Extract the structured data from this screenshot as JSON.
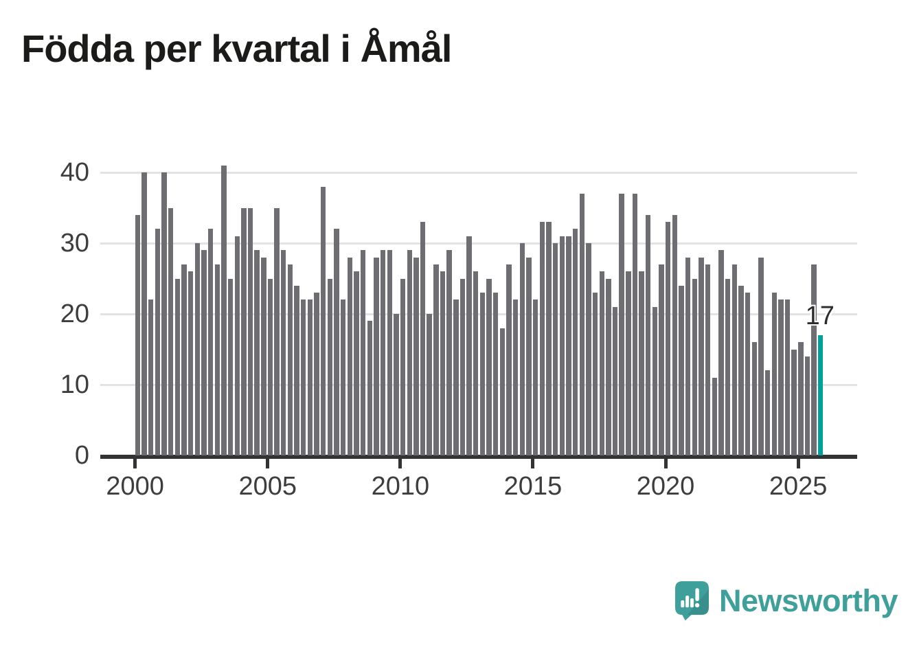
{
  "title": "Födda per kvartal i Åmål",
  "chart_data": {
    "type": "bar",
    "title": "Födda per kvartal i Åmål",
    "unit_period": "quarter",
    "start_year": 2000,
    "categories_note": "104 consecutive quarters from 2000-Q1 to 2025-Q4",
    "values": [
      34,
      40,
      22,
      32,
      40,
      35,
      25,
      27,
      26,
      30,
      29,
      32,
      27,
      41,
      25,
      31,
      35,
      35,
      29,
      28,
      25,
      35,
      29,
      27,
      24,
      22,
      22,
      23,
      38,
      25,
      32,
      22,
      28,
      26,
      29,
      19,
      28,
      29,
      29,
      20,
      25,
      29,
      28,
      33,
      20,
      27,
      26,
      29,
      22,
      25,
      31,
      26,
      23,
      25,
      23,
      18,
      27,
      22,
      30,
      28,
      22,
      33,
      33,
      30,
      31,
      31,
      32,
      37,
      30,
      23,
      26,
      25,
      21,
      37,
      26,
      37,
      26,
      34,
      21,
      27,
      33,
      34,
      24,
      28,
      25,
      28,
      27,
      11,
      29,
      25,
      27,
      24,
      23,
      16,
      28,
      12,
      23,
      22,
      22,
      15,
      16,
      14,
      27,
      17
    ],
    "highlight_index": 103,
    "highlight_value": 17,
    "annotation": {
      "text": "17"
    },
    "yticks": [
      "0",
      "10",
      "20",
      "30",
      "40"
    ],
    "ylim": [
      0,
      43
    ],
    "xticks": [
      "2000",
      "2005",
      "2010",
      "2015",
      "2020",
      "2025"
    ],
    "grid": "horizontal",
    "legend": "none",
    "colors": {
      "bar": "#6e6d72",
      "highlight": "#00a19a",
      "gridline": "#e3e3e3",
      "axis": "#333333",
      "tick_label": "#3d3d3d"
    }
  },
  "branding": {
    "wordmark": "Newsworthy",
    "logo_icon": "newsworthy-speech-bubble-chart-icon",
    "brand_color": "#3fa09b"
  }
}
